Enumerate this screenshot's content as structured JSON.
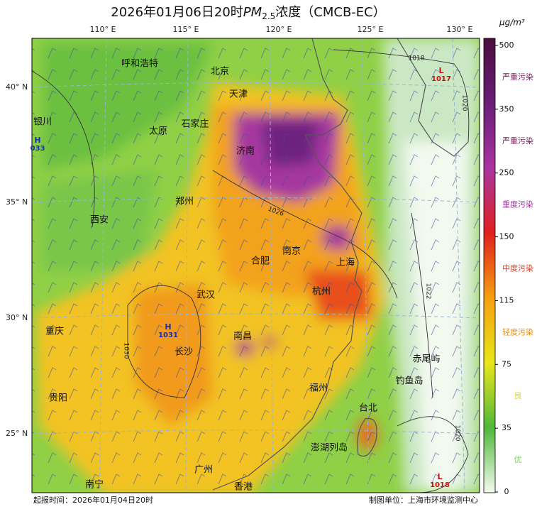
{
  "title": {
    "date": "2026年01月06日20时",
    "pollutant": "PM",
    "subscript": "2.5",
    "suffix": "浓度（CMCB-EC）"
  },
  "map": {
    "longitude_labels": [
      "110° E",
      "115° E",
      "120° E",
      "125° E",
      "130° E"
    ],
    "latitude_labels": [
      "40° N",
      "35° N",
      "30° N",
      "25° N"
    ],
    "cities": [
      "呼和浩特",
      "北京",
      "天津",
      "银川",
      "太原",
      "石家庄",
      "济南",
      "郑州",
      "西安",
      "南京",
      "合肥",
      "上海",
      "武汉",
      "杭州",
      "重庆",
      "长沙",
      "南昌",
      "赤尾屿",
      "钓鱼岛",
      "福州",
      "贵阳",
      "台北",
      "澎湖列岛",
      "广州",
      "香港",
      "南宁"
    ],
    "pressure_centers": [
      {
        "type": "H",
        "value": "033"
      },
      {
        "type": "H",
        "value": "1031"
      },
      {
        "type": "L",
        "value": "1017"
      },
      {
        "type": "L",
        "value": "1018"
      }
    ],
    "isobar_labels": [
      "1018",
      "1020",
      "1026",
      "1030",
      "1022",
      "1020"
    ]
  },
  "colorbar": {
    "unit": "μg/m³",
    "ticks": [
      0,
      35,
      75,
      115,
      150,
      250,
      350,
      500
    ],
    "colors": [
      "#f4fbf0",
      "#4fb83a",
      "#e8e61a",
      "#f5a010",
      "#e0201e",
      "#a9359f",
      "#6a1e78",
      "#4a0e3e"
    ],
    "levels": [
      "优",
      "良",
      "轻度污染",
      "中度污染",
      "重度污染",
      "严重污染",
      "严重污染"
    ],
    "level_colors": [
      "#7ccf6a",
      "#e8d800",
      "#f08a00",
      "#e03a20",
      "#a0309a",
      "#7a2060",
      "#7a2060"
    ]
  },
  "footer": {
    "issue_time": "起报时间：2026年01月04日20时",
    "producer": "制图单位：上海市环境监测中心"
  }
}
